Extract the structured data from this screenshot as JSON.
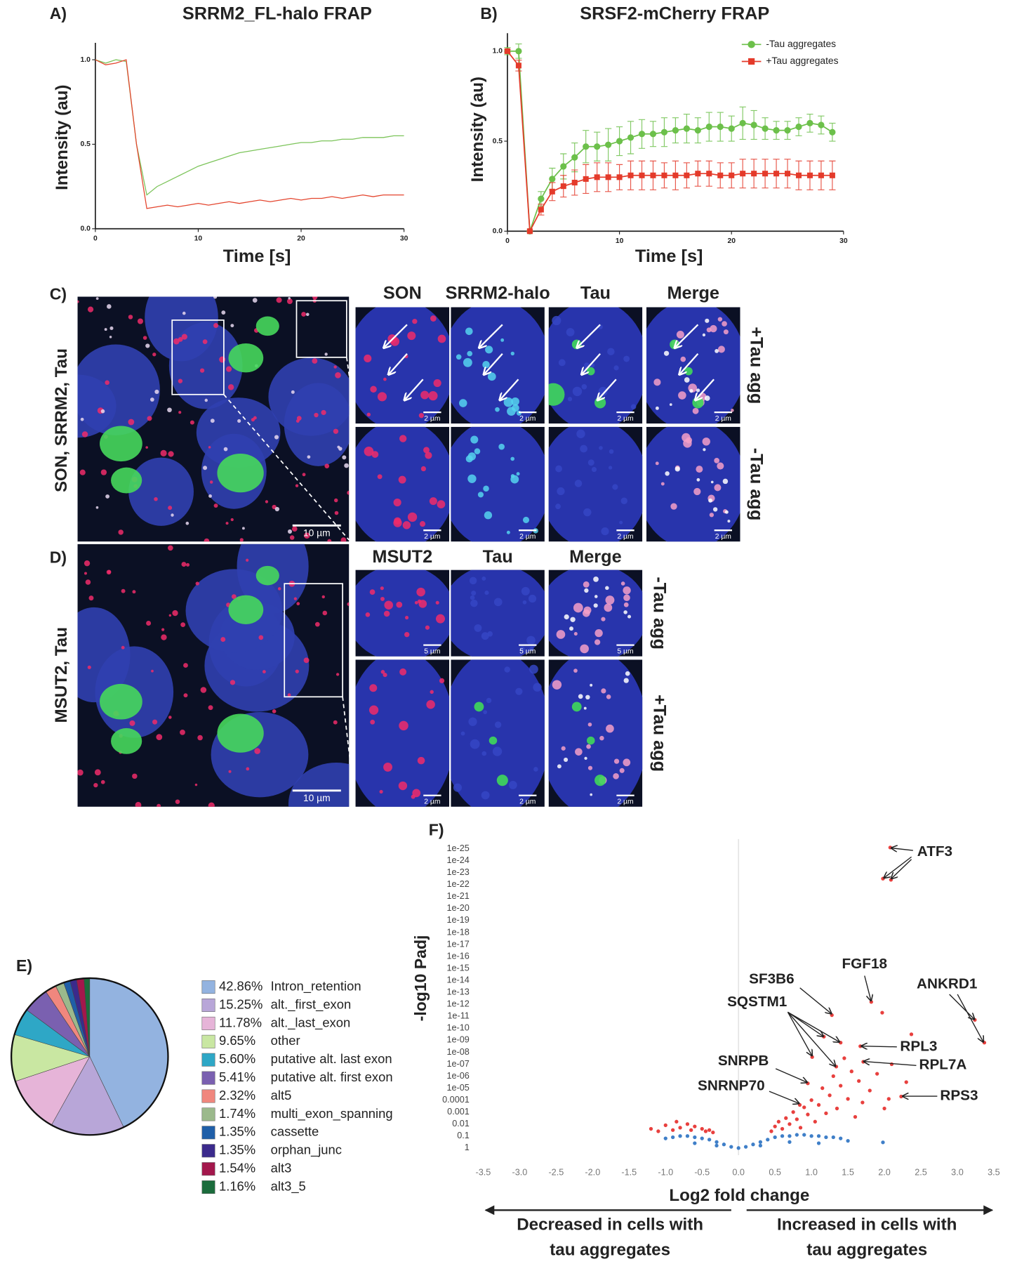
{
  "chart_data": [
    {
      "type": "line",
      "panel_label": "A)",
      "title": "SRRM2_FL-halo FRAP",
      "xlabel": "Time [s]",
      "ylabel": "Intensity (au)",
      "x": [
        0,
        1,
        2,
        3,
        4,
        5,
        6,
        7,
        8,
        9,
        10,
        11,
        12,
        13,
        14,
        15,
        16,
        17,
        18,
        19,
        20,
        21,
        22,
        23,
        24,
        25,
        26,
        27,
        28,
        29,
        30
      ],
      "series": [
        {
          "color": "#7cc45a",
          "values": [
            1.0,
            0.98,
            1.0,
            0.99,
            0.5,
            0.2,
            0.25,
            0.28,
            0.31,
            0.34,
            0.37,
            0.39,
            0.41,
            0.43,
            0.45,
            0.46,
            0.47,
            0.48,
            0.49,
            0.5,
            0.51,
            0.51,
            0.52,
            0.52,
            0.53,
            0.53,
            0.54,
            0.54,
            0.54,
            0.55,
            0.55
          ]
        },
        {
          "color": "#e4452e",
          "values": [
            1.0,
            0.97,
            0.98,
            1.0,
            0.5,
            0.12,
            0.13,
            0.14,
            0.13,
            0.14,
            0.15,
            0.14,
            0.15,
            0.16,
            0.15,
            0.16,
            0.17,
            0.16,
            0.17,
            0.18,
            0.17,
            0.18,
            0.18,
            0.19,
            0.18,
            0.19,
            0.2,
            0.19,
            0.2,
            0.2,
            0.2
          ]
        }
      ],
      "xlim": [
        0,
        30
      ],
      "ylim": [
        0,
        1.1
      ],
      "xticks": [
        0,
        10,
        20,
        30
      ],
      "yticks": [
        {
          "value": 0,
          "label": "0.0"
        },
        {
          "value": 0.5,
          "label": "0.5"
        },
        {
          "value": 1,
          "label": "1.0"
        }
      ]
    },
    {
      "type": "line",
      "panel_label": "B)",
      "title": "SRSF2-mCherry FRAP",
      "xlabel": "Time [s]",
      "ylabel": "Intensity (au)",
      "legend": "upper right",
      "x": [
        0,
        1,
        2,
        3,
        4,
        5,
        6,
        7,
        8,
        9,
        10,
        11,
        12,
        13,
        14,
        15,
        16,
        17,
        18,
        19,
        20,
        21,
        22,
        23,
        24,
        25,
        26,
        27,
        28,
        29
      ],
      "series": [
        {
          "name": "-Tau aggregates",
          "color": "#6cc04a",
          "marker": "circle",
          "values": [
            1.0,
            1.0,
            0.0,
            0.18,
            0.29,
            0.36,
            0.41,
            0.47,
            0.47,
            0.48,
            0.5,
            0.52,
            0.54,
            0.54,
            0.55,
            0.56,
            0.57,
            0.56,
            0.58,
            0.58,
            0.57,
            0.6,
            0.59,
            0.57,
            0.56,
            0.56,
            0.58,
            0.6,
            0.59,
            0.55
          ],
          "errors": [
            0.02,
            0.04,
            0.0,
            0.04,
            0.06,
            0.07,
            0.08,
            0.09,
            0.08,
            0.09,
            0.08,
            0.09,
            0.08,
            0.07,
            0.08,
            0.07,
            0.08,
            0.07,
            0.08,
            0.08,
            0.07,
            0.09,
            0.08,
            0.06,
            0.05,
            0.05,
            0.05,
            0.05,
            0.05,
            0.05
          ]
        },
        {
          "name": "+Tau aggregates",
          "color": "#e43a2a",
          "marker": "square",
          "values": [
            1.0,
            0.92,
            0.0,
            0.12,
            0.22,
            0.25,
            0.27,
            0.29,
            0.3,
            0.3,
            0.3,
            0.31,
            0.31,
            0.31,
            0.31,
            0.31,
            0.31,
            0.32,
            0.32,
            0.31,
            0.31,
            0.32,
            0.32,
            0.32,
            0.32,
            0.32,
            0.31,
            0.31,
            0.31,
            0.31
          ],
          "errors": [
            0.01,
            0.03,
            0.0,
            0.03,
            0.05,
            0.06,
            0.07,
            0.08,
            0.08,
            0.08,
            0.07,
            0.08,
            0.08,
            0.08,
            0.07,
            0.08,
            0.07,
            0.07,
            0.07,
            0.07,
            0.07,
            0.08,
            0.08,
            0.08,
            0.08,
            0.08,
            0.08,
            0.08,
            0.08,
            0.08
          ]
        }
      ],
      "xlim": [
        0,
        30
      ],
      "ylim": [
        0,
        1.1
      ],
      "xticks": [
        0,
        10,
        20,
        30
      ],
      "yticks": [
        {
          "value": 0,
          "label": "0.0"
        },
        {
          "value": 0.5,
          "label": "0.5"
        },
        {
          "value": 1,
          "label": "1.0"
        }
      ]
    },
    {
      "type": "pie",
      "panel_label": "E)",
      "categories": [
        "Intron_retention",
        "alt._first_exon",
        "alt._last_exon",
        "other",
        "putative alt. last exon",
        "putative alt. first exon",
        "alt5",
        "multi_exon_spanning",
        "cassette",
        "orphan_junc",
        "alt3",
        "alt3_5"
      ],
      "values": [
        42.86,
        15.25,
        11.78,
        9.65,
        5.6,
        5.41,
        2.32,
        1.74,
        1.35,
        1.35,
        1.54,
        1.16
      ],
      "value_labels": [
        "42.86%",
        "15.25%",
        "11.78%",
        "9.65%",
        "5.60%",
        "5.41%",
        "2.32%",
        "1.74%",
        "1.35%",
        "1.35%",
        "1.54%",
        "1.16%"
      ],
      "colors": [
        "#93b3e0",
        "#b8a6d8",
        "#e6b4d8",
        "#c9e7a2",
        "#2ea7c6",
        "#7a60b0",
        "#f0877e",
        "#9bb98c",
        "#1f5fa8",
        "#3b2a8c",
        "#a3174c",
        "#1b6c3c"
      ]
    },
    {
      "type": "scatter",
      "panel_label": "F)",
      "xlabel": "Log2 fold change",
      "ylabel": "-log10 Padj",
      "zero_line": true,
      "series": [
        {
          "color": "#e8403e",
          "x": [
            -1.2,
            -1.1,
            -1.0,
            -0.9,
            -0.85,
            -0.8,
            -0.7,
            -0.65,
            -0.6,
            -0.5,
            -0.45,
            -0.4,
            -0.35,
            0.45,
            0.5,
            0.55,
            0.6,
            0.65,
            0.7,
            0.75,
            0.8,
            0.85,
            0.9,
            0.95,
            1.0,
            1.05,
            1.1,
            1.15,
            1.2,
            1.25,
            1.3,
            1.35,
            1.4,
            1.45,
            1.5,
            1.55,
            1.6,
            1.65,
            1.7,
            1.8,
            1.9,
            2.0,
            2.1,
            2.3,
            2.37,
            1.97,
            2.08,
            1.98,
            2.09,
            1.82,
            1.28,
            3.24,
            3.37,
            1.17,
            1.4,
            1.01,
            1.34,
            1.67,
            1.71,
            0.95,
            0.84,
            2.23,
            2.06
          ],
          "values": [
            1.6,
            1.4,
            1.9,
            1.5,
            2.2,
            1.7,
            2.0,
            1.5,
            1.8,
            1.6,
            1.4,
            1.5,
            1.3,
            1.4,
            1.8,
            2.2,
            1.6,
            2.5,
            2.0,
            3.0,
            2.4,
            1.7,
            3.4,
            2.8,
            4.0,
            2.2,
            3.6,
            5.0,
            2.9,
            4.4,
            6.0,
            3.3,
            5.2,
            7.5,
            4.1,
            6.4,
            2.6,
            5.6,
            3.8,
            4.8,
            6.2,
            3.3,
            7.0,
            5.5,
            9.5,
            11.3,
            25.1,
            22.5,
            22.4,
            12.2,
            11.1,
            10.7,
            8.8,
            9.3,
            8.8,
            7.6,
            6.8,
            8.5,
            7.2,
            5.4,
            3.6,
            4.3,
            4.1
          ]
        },
        {
          "color": "#3f7fc8",
          "x": [
            -1.0,
            -0.9,
            -0.8,
            -0.7,
            -0.6,
            -0.5,
            -0.4,
            -0.3,
            -0.2,
            -0.1,
            0.0,
            0.1,
            0.2,
            0.3,
            0.4,
            0.5,
            0.6,
            0.7,
            0.8,
            0.9,
            1.0,
            1.1,
            1.2,
            1.3,
            1.4,
            1.5,
            1.98,
            -0.6,
            -0.3,
            0.3,
            0.7,
            1.1
          ],
          "values": [
            0.8,
            0.9,
            1.0,
            1.0,
            0.9,
            0.8,
            0.7,
            0.5,
            0.3,
            0.1,
            0.0,
            0.1,
            0.3,
            0.5,
            0.7,
            0.9,
            1.0,
            1.0,
            1.1,
            1.1,
            1.0,
            1.0,
            0.9,
            0.9,
            0.8,
            0.6,
            0.47,
            0.4,
            0.2,
            0.2,
            0.5,
            0.4
          ]
        }
      ],
      "xlim": [
        -3.6,
        3.6
      ],
      "ylim": [
        -0.6,
        25.8
      ],
      "xticks": [
        -3.5,
        {
          "value": -3,
          "label": "-3.0"
        },
        -2.5,
        {
          "value": -2,
          "label": "-2.0"
        },
        -1.5,
        {
          "value": -1,
          "label": "-1.0"
        },
        -0.5,
        {
          "value": 0,
          "label": "0.0"
        },
        0.5,
        {
          "value": 1,
          "label": "1.0"
        },
        1.5,
        {
          "value": 2,
          "label": "2.0"
        },
        2.5,
        {
          "value": 3,
          "label": "3.0"
        },
        3.5
      ],
      "yticks": [
        {
          "value": 0,
          "label": "1"
        },
        {
          "value": 1,
          "label": "0.1"
        },
        {
          "value": 2,
          "label": "0.01"
        },
        {
          "value": 3,
          "label": "0.001"
        },
        {
          "value": 4,
          "label": "0.0001"
        },
        {
          "value": 5,
          "label": "1e-05"
        },
        {
          "value": 6,
          "label": "1e-06"
        },
        {
          "value": 7,
          "label": "1e-07"
        },
        {
          "value": 8,
          "label": "1e-08"
        },
        {
          "value": 9,
          "label": "1e-09"
        },
        {
          "value": 10,
          "label": "1e-10"
        },
        {
          "value": 11,
          "label": "1e-11"
        },
        {
          "value": 12,
          "label": "1e-12"
        },
        {
          "value": 13,
          "label": "1e-13"
        },
        {
          "value": 14,
          "label": "1e-14"
        },
        {
          "value": 15,
          "label": "1e-15"
        },
        {
          "value": 16,
          "label": "1e-16"
        },
        {
          "value": 17,
          "label": "1e-17"
        },
        {
          "value": 18,
          "label": "1e-18"
        },
        {
          "value": 19,
          "label": "1e-19"
        },
        {
          "value": 20,
          "label": "1e-20"
        },
        {
          "value": 21,
          "label": "1e-21"
        },
        {
          "value": 22,
          "label": "1e-22"
        },
        {
          "value": 23,
          "label": "1e-23"
        },
        {
          "value": 24,
          "label": "1e-24"
        },
        {
          "value": 25,
          "label": "1e-25"
        }
      ],
      "annotations": [
        "ATF3",
        "FGF18",
        "SF3B6",
        "ANKRD1",
        "SQSTM1",
        "RPL3",
        "RPL7A",
        "SNRPB",
        "SNRNP70",
        "RPS3"
      ],
      "direction_labels": {
        "left": [
          "Decreased in cells with",
          "tau aggregates"
        ],
        "right": [
          "Increased in cells with",
          "tau aggregates"
        ]
      }
    }
  ],
  "panels": [
    {
      "label": "C)",
      "side_label": "SON, SRRM2, Tau",
      "columns": [
        "SON",
        "SRRM2-halo",
        "Tau",
        "Merge"
      ],
      "rows": [
        "+Tau agg",
        "-Tau agg"
      ],
      "overview_scale": "10 µm",
      "tile_scales": [
        [
          "2 µm",
          "2 µm",
          "2 µm",
          "2 µm"
        ],
        [
          "2 µm",
          "2 µm",
          "2 µm",
          "2 µm"
        ]
      ]
    },
    {
      "label": "D)",
      "side_label": "MSUT2, Tau",
      "columns": [
        "MSUT2",
        "Tau",
        "Merge"
      ],
      "rows": [
        "-Tau agg",
        "+Tau agg"
      ],
      "overview_scale": "10 µm",
      "tile_scales": [
        [
          "5 µm",
          "5 µm",
          "5 µm"
        ],
        [
          "2 µm",
          "2 µm",
          "2 µm"
        ]
      ]
    }
  ]
}
